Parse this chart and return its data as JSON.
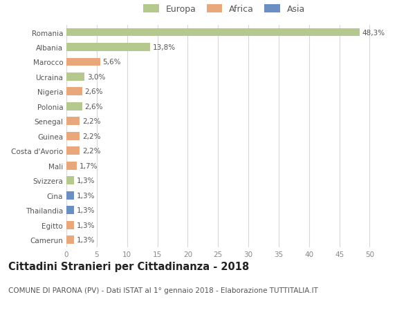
{
  "countries": [
    "Romania",
    "Albania",
    "Marocco",
    "Ucraina",
    "Nigeria",
    "Polonia",
    "Senegal",
    "Guinea",
    "Costa d'Avorio",
    "Mali",
    "Svizzera",
    "Cina",
    "Thailandia",
    "Egitto",
    "Camerun"
  ],
  "values": [
    48.3,
    13.8,
    5.6,
    3.0,
    2.6,
    2.6,
    2.2,
    2.2,
    2.2,
    1.7,
    1.3,
    1.3,
    1.3,
    1.3,
    1.3
  ],
  "labels": [
    "48,3%",
    "13,8%",
    "5,6%",
    "3,0%",
    "2,6%",
    "2,6%",
    "2,2%",
    "2,2%",
    "2,2%",
    "1,7%",
    "1,3%",
    "1,3%",
    "1,3%",
    "1,3%",
    "1,3%"
  ],
  "continents": [
    "Europa",
    "Europa",
    "Africa",
    "Europa",
    "Africa",
    "Europa",
    "Africa",
    "Africa",
    "Africa",
    "Africa",
    "Europa",
    "Asia",
    "Asia",
    "Africa",
    "Africa"
  ],
  "colors": {
    "Europa": "#b5c98e",
    "Africa": "#e8a87c",
    "Asia": "#6b8fc2"
  },
  "legend_labels": [
    "Europa",
    "Africa",
    "Asia"
  ],
  "legend_colors": [
    "#b5c98e",
    "#e8a87c",
    "#6b8fc2"
  ],
  "xlim": [
    0,
    52
  ],
  "xticks": [
    0,
    5,
    10,
    15,
    20,
    25,
    30,
    35,
    40,
    45,
    50
  ],
  "title": "Cittadini Stranieri per Cittadinanza - 2018",
  "subtitle": "COMUNE DI PARONA (PV) - Dati ISTAT al 1° gennaio 2018 - Elaborazione TUTTITALIA.IT",
  "background_color": "#ffffff",
  "grid_color": "#d8d8d8",
  "bar_height": 0.55,
  "label_fontsize": 7.5,
  "tick_fontsize": 7.5,
  "title_fontsize": 10.5,
  "subtitle_fontsize": 7.5,
  "legend_fontsize": 9
}
